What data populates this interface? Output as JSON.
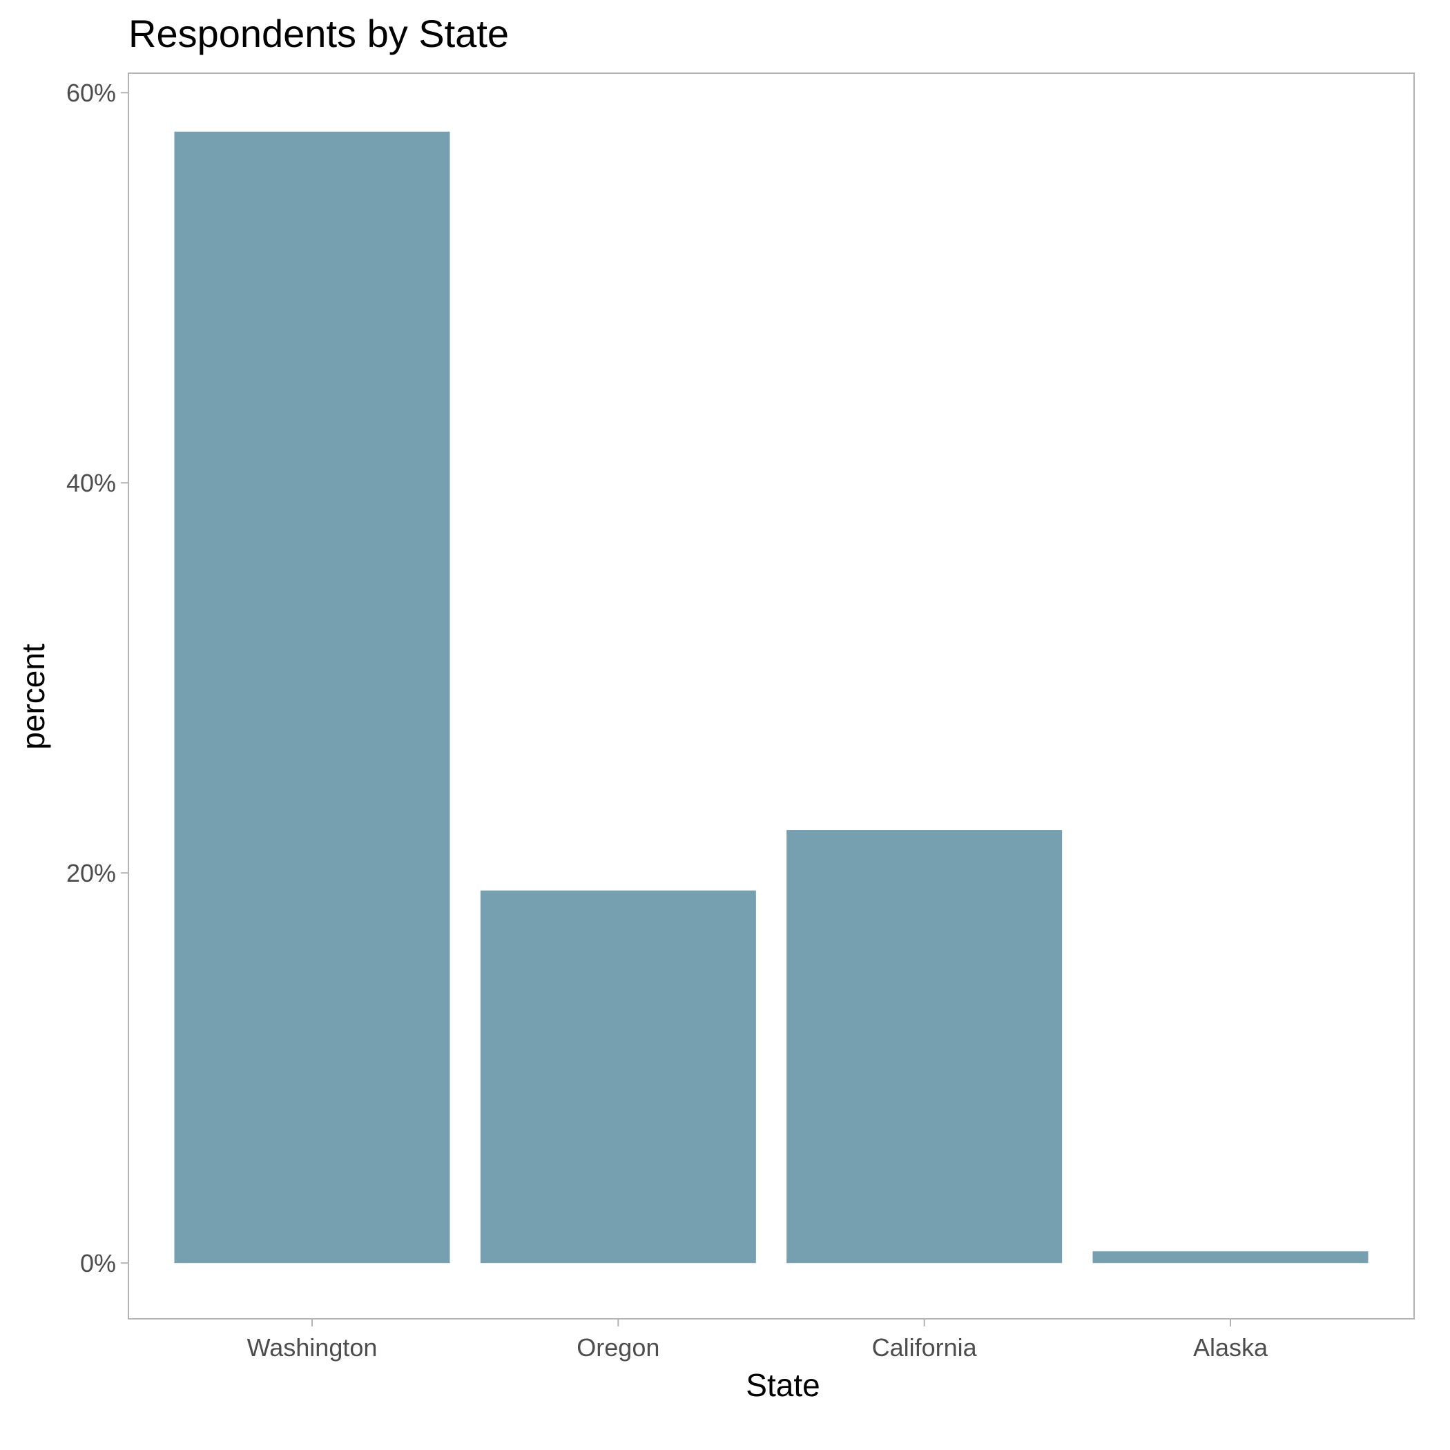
{
  "chart_data": {
    "type": "bar",
    "title": "Respondents by State",
    "xlabel": "State",
    "ylabel": "percent",
    "categories": [
      "Washington",
      "Oregon",
      "California",
      "Alaska"
    ],
    "values": [
      58.0,
      19.1,
      22.2,
      0.6
    ],
    "ylim": [
      -2.86,
      61.0
    ],
    "yticks": [
      0,
      20,
      40,
      60
    ],
    "ytick_labels": [
      "0%",
      "20%",
      "40%",
      "60%"
    ],
    "grid": false,
    "legend": "none",
    "bar_color": "#769fb0"
  }
}
